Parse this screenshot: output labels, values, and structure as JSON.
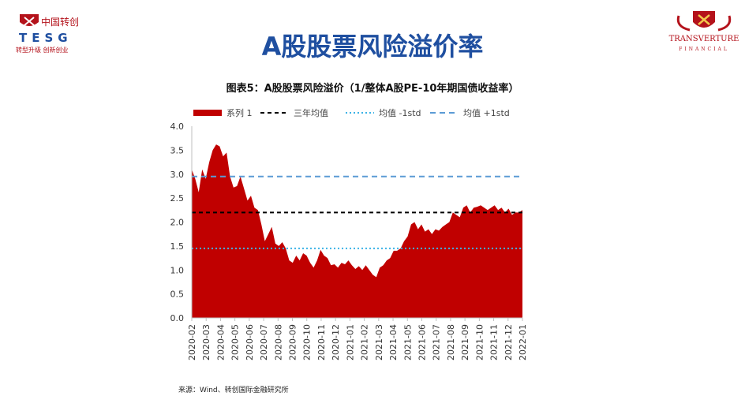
{
  "header": {
    "left_logo_cn": "中国转创",
    "left_logo_en": "TESG",
    "left_logo_tag": "转型升级 创新创业",
    "right_logo_en": "TRANSVERTURE",
    "right_logo_sub": "FINANCIAL",
    "slide_title": "A股股票风险溢价率"
  },
  "chart_title": "图表5：A股股票风险溢价（1/整体A股PE-10年期国债收益率）",
  "source": "来源：Wind、转创国际金融研究所",
  "colors": {
    "area": "#c00000",
    "mean": "#000000",
    "minus": "#3bb3e6",
    "plus": "#5b9bd5",
    "brand_blue": "#1f4fa0",
    "brand_red": "#b4121b"
  },
  "chart_data": {
    "type": "area",
    "legend": [
      "系列 1",
      "三年均值",
      "均值 -1std",
      "均值 +1std"
    ],
    "ylim": [
      0,
      4
    ],
    "yticks": [
      "4.0",
      "3.5",
      "3.0",
      "2.5",
      "2.0",
      "1.5",
      "1.0",
      "0.5",
      "0.0"
    ],
    "xticks": [
      "2020-02",
      "2020-03",
      "2020-04",
      "2020-05",
      "2020-06",
      "2020-07",
      "2020-08",
      "2020-09",
      "2020-10",
      "2020-11",
      "2020-12",
      "2021-01",
      "2021-02",
      "2021-03",
      "2021-04",
      "2021-05",
      "2021-06",
      "2021-07",
      "2021-08",
      "2021-09",
      "2021-10",
      "2021-11",
      "2021-12",
      "2022-01"
    ],
    "series": [
      {
        "name": "系列 1",
        "values": [
          3.1,
          2.9,
          2.62,
          3.1,
          2.9,
          3.25,
          3.5,
          3.62,
          3.58,
          3.37,
          3.45,
          2.95,
          2.72,
          2.75,
          2.95,
          2.7,
          2.45,
          2.55,
          2.3,
          2.25,
          1.95,
          1.6,
          1.75,
          1.9,
          1.55,
          1.5,
          1.58,
          1.45,
          1.2,
          1.15,
          1.3,
          1.2,
          1.35,
          1.3,
          1.15,
          1.05,
          1.2,
          1.42,
          1.3,
          1.25,
          1.1,
          1.12,
          1.05,
          1.15,
          1.12,
          1.2,
          1.1,
          1.02,
          1.08,
          1.0,
          1.1,
          1.0,
          0.9,
          0.85,
          1.05,
          1.1,
          1.2,
          1.25,
          1.4,
          1.4,
          1.45,
          1.6,
          1.7,
          1.95,
          2.0,
          1.85,
          1.95,
          1.8,
          1.85,
          1.75,
          1.85,
          1.82,
          1.9,
          1.95,
          2.0,
          2.2,
          2.15,
          2.1,
          2.3,
          2.35,
          2.2,
          2.3,
          2.32,
          2.35,
          2.3,
          2.25,
          2.3,
          2.35,
          2.25,
          2.3,
          2.2,
          2.28,
          2.15,
          2.2,
          2.2,
          2.25
        ]
      },
      {
        "name": "三年均值",
        "values": [
          2.2
        ]
      },
      {
        "name": "均值 -1std",
        "values": [
          1.45
        ]
      },
      {
        "name": "均值 +1std",
        "values": [
          2.95
        ]
      }
    ]
  }
}
